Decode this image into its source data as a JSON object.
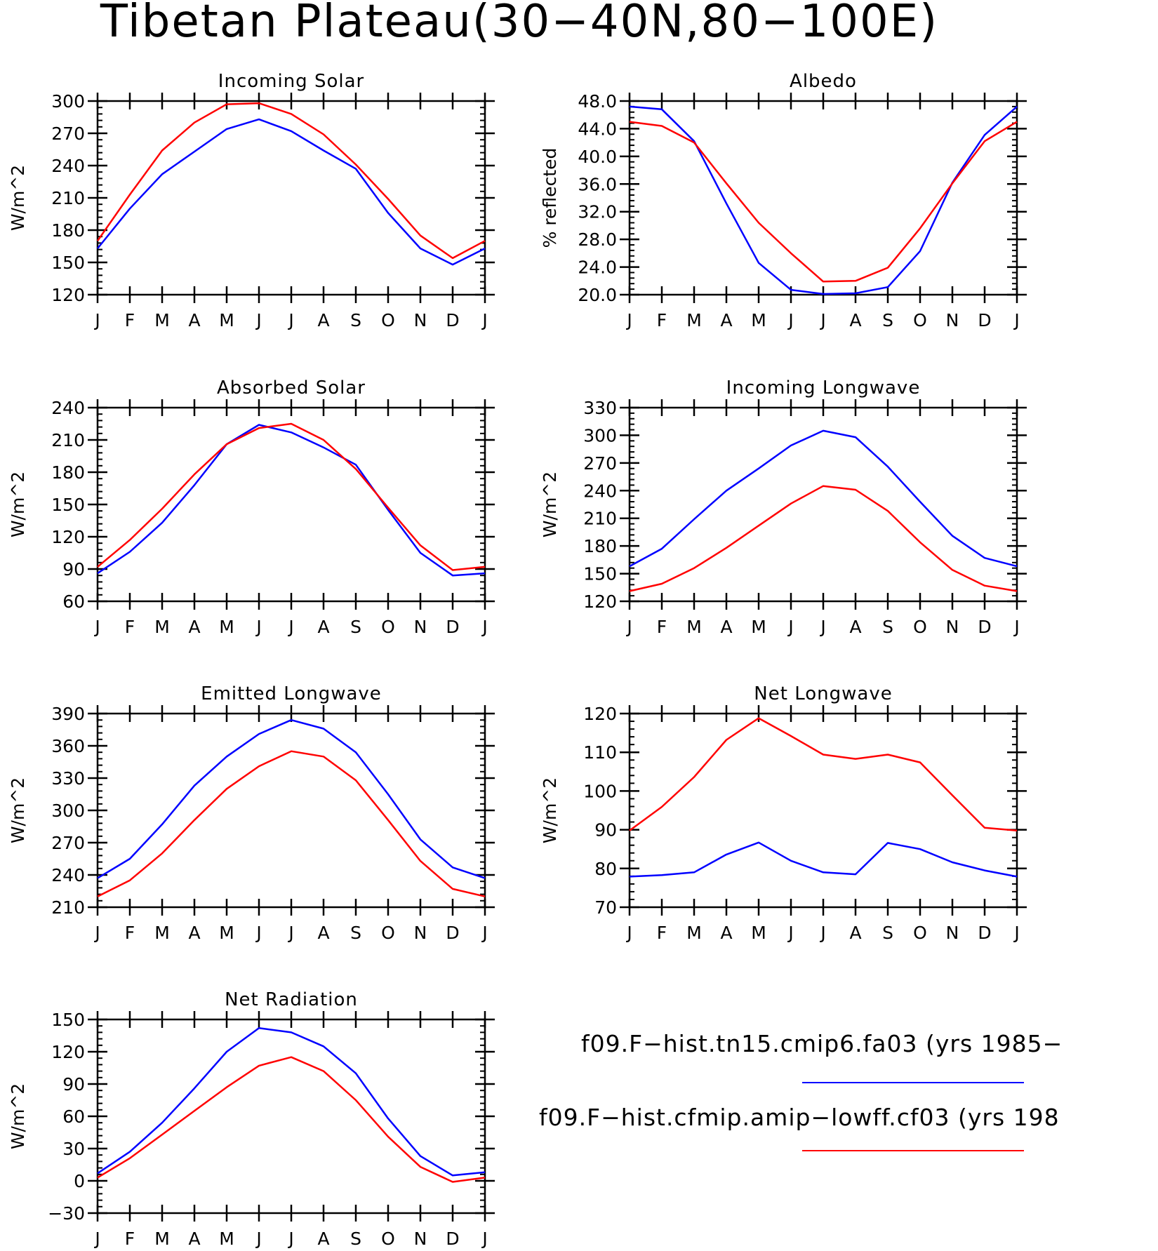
{
  "title": "Tibetan Plateau(30−40N,80−100E)",
  "colors": {
    "series1": "#0000ff",
    "series2": "#ff0000",
    "axis": "#000000"
  },
  "legend": [
    {
      "label": "f09.F−hist.tn15.cmip6.fa03 (yrs 1985−",
      "color": "#0000ff"
    },
    {
      "label": "f09.F−hist.cfmip.amip−lowff.cf03 (yrs 198",
      "color": "#ff0000"
    }
  ],
  "chart_data": [
    {
      "type": "line",
      "title": "Incoming Solar",
      "ylabel": "W/m^2",
      "x": [
        "J",
        "F",
        "M",
        "A",
        "M",
        "J",
        "J",
        "A",
        "S",
        "O",
        "N",
        "D",
        "J"
      ],
      "ylim": [
        120,
        300
      ],
      "yticks": [
        "120",
        "150",
        "180",
        "210",
        "240",
        "270",
        "300"
      ],
      "series": [
        {
          "color": "#0000ff",
          "values": [
            163,
            200,
            232,
            253,
            274,
            283,
            272,
            254,
            237,
            196,
            163,
            148,
            163
          ]
        },
        {
          "color": "#ff0000",
          "values": [
            170,
            213,
            254,
            280,
            297,
            298,
            288,
            269,
            241,
            209,
            175,
            154,
            170
          ]
        }
      ]
    },
    {
      "type": "line",
      "title": "Albedo",
      "ylabel": "% reflected",
      "x": [
        "J",
        "F",
        "M",
        "A",
        "M",
        "J",
        "J",
        "A",
        "S",
        "O",
        "N",
        "D",
        "J"
      ],
      "ylim": [
        20,
        48
      ],
      "yticks": [
        "20.0",
        "24.0",
        "28.0",
        "32.0",
        "36.0",
        "40.0",
        "44.0",
        "48.0"
      ],
      "series": [
        {
          "color": "#0000ff",
          "values": [
            47.2,
            46.8,
            42.2,
            33.2,
            24.6,
            20.7,
            20.1,
            20.2,
            21.1,
            26.3,
            36.2,
            43.1,
            47.2
          ]
        },
        {
          "color": "#ff0000",
          "values": [
            45.0,
            44.4,
            42.0,
            36.1,
            30.4,
            26.0,
            21.9,
            22.0,
            23.9,
            29.6,
            36.1,
            42.2,
            45.0
          ]
        }
      ]
    },
    {
      "type": "line",
      "title": "Absorbed Solar",
      "ylabel": "W/m^2",
      "x": [
        "J",
        "F",
        "M",
        "A",
        "M",
        "J",
        "J",
        "A",
        "S",
        "O",
        "N",
        "D",
        "J"
      ],
      "ylim": [
        60,
        240
      ],
      "yticks": [
        "60",
        "90",
        "120",
        "150",
        "180",
        "210",
        "240"
      ],
      "series": [
        {
          "color": "#0000ff",
          "values": [
            86,
            106,
            133,
            168,
            206,
            224,
            217,
            203,
            187,
            145,
            105,
            84,
            86
          ]
        },
        {
          "color": "#ff0000",
          "values": [
            92,
            117,
            146,
            178,
            206,
            221,
            225,
            210,
            183,
            147,
            112,
            89,
            92
          ]
        }
      ]
    },
    {
      "type": "line",
      "title": "Incoming Longwave",
      "ylabel": "W/m^2",
      "x": [
        "J",
        "F",
        "M",
        "A",
        "M",
        "J",
        "J",
        "A",
        "S",
        "O",
        "N",
        "D",
        "J"
      ],
      "ylim": [
        120,
        330
      ],
      "yticks": [
        "120",
        "150",
        "180",
        "210",
        "240",
        "270",
        "300",
        "330"
      ],
      "series": [
        {
          "color": "#0000ff",
          "values": [
            158,
            177,
            209,
            240,
            264,
            289,
            305,
            298,
            266,
            228,
            191,
            167,
            158
          ]
        },
        {
          "color": "#ff0000",
          "values": [
            131,
            139,
            156,
            178,
            202,
            226,
            245,
            241,
            218,
            184,
            154,
            137,
            131
          ]
        }
      ]
    },
    {
      "type": "line",
      "title": "Emitted Longwave",
      "ylabel": "W/m^2",
      "x": [
        "J",
        "F",
        "M",
        "A",
        "M",
        "J",
        "J",
        "A",
        "S",
        "O",
        "N",
        "D",
        "J"
      ],
      "ylim": [
        210,
        390
      ],
      "yticks": [
        "210",
        "240",
        "270",
        "300",
        "330",
        "360",
        "390"
      ],
      "series": [
        {
          "color": "#0000ff",
          "values": [
            237,
            255,
            287,
            323,
            350,
            371,
            384,
            376,
            354,
            315,
            273,
            247,
            237
          ]
        },
        {
          "color": "#ff0000",
          "values": [
            220,
            235,
            260,
            291,
            320,
            341,
            355,
            350,
            328,
            291,
            253,
            227,
            220
          ]
        }
      ]
    },
    {
      "type": "line",
      "title": "Net Longwave",
      "ylabel": "W/m^2",
      "x": [
        "J",
        "F",
        "M",
        "A",
        "M",
        "J",
        "J",
        "A",
        "S",
        "O",
        "N",
        "D",
        "J"
      ],
      "ylim": [
        70,
        120
      ],
      "yticks": [
        "70",
        "80",
        "90",
        "100",
        "110",
        "120"
      ],
      "series": [
        {
          "color": "#0000ff",
          "values": [
            77.9,
            78.3,
            79.0,
            83.6,
            86.7,
            82.0,
            79.0,
            78.5,
            86.6,
            85.0,
            81.6,
            79.5,
            77.9
          ]
        },
        {
          "color": "#ff0000",
          "values": [
            89.8,
            95.9,
            103.6,
            113.2,
            118.8,
            114.2,
            109.4,
            108.3,
            109.4,
            107.4,
            98.9,
            90.5,
            89.8
          ]
        }
      ]
    },
    {
      "type": "line",
      "title": "Net Radiation",
      "ylabel": "W/m^2",
      "x": [
        "J",
        "F",
        "M",
        "A",
        "M",
        "J",
        "J",
        "A",
        "S",
        "O",
        "N",
        "D",
        "J"
      ],
      "ylim": [
        -30,
        150
      ],
      "yticks": [
        "−30",
        "0",
        "30",
        "60",
        "90",
        "120",
        "150"
      ],
      "series": [
        {
          "color": "#0000ff",
          "values": [
            7,
            27,
            54,
            86,
            120,
            142,
            138,
            125,
            100,
            58,
            23,
            5,
            8
          ]
        },
        {
          "color": "#ff0000",
          "values": [
            3,
            21,
            43,
            65,
            87,
            107,
            115,
            102,
            75,
            41,
            13,
            -1,
            3
          ]
        }
      ]
    }
  ]
}
